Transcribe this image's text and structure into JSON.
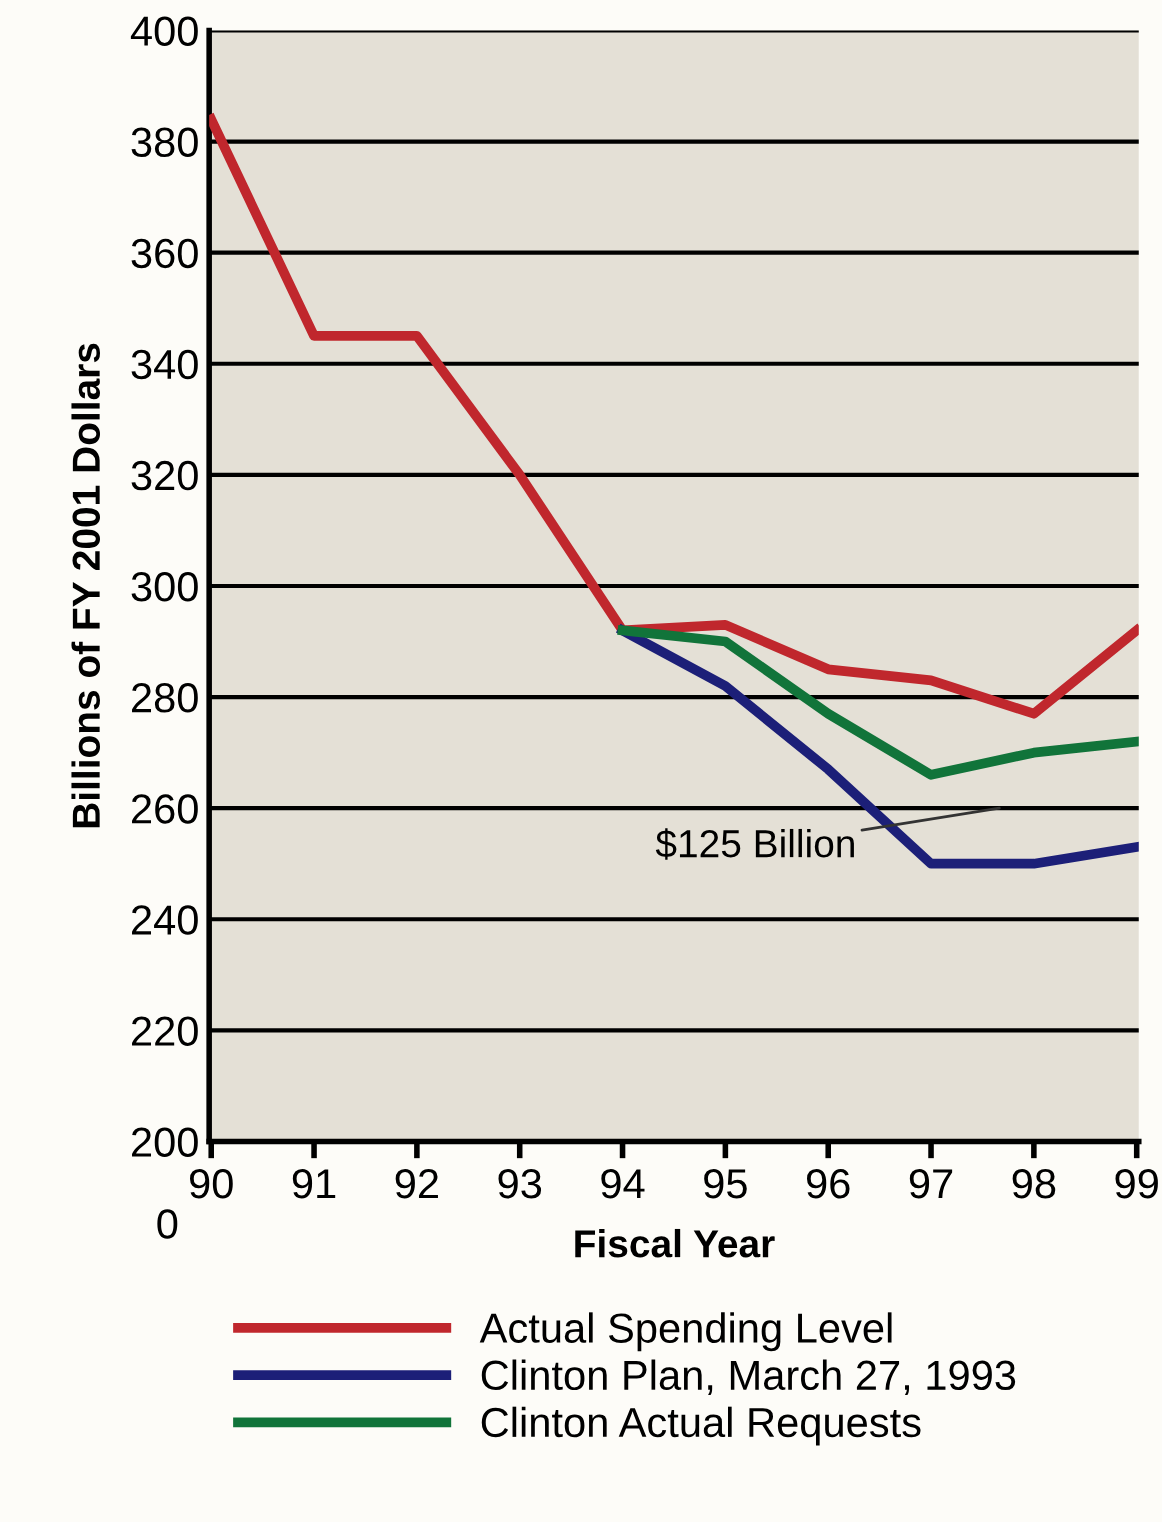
{
  "chart_data": {
    "type": "line",
    "xlabel": "Fiscal Year",
    "ylabel": "Billions of FY 2001 Dollars",
    "categories": [
      "90",
      "91",
      "92",
      "93",
      "94",
      "95",
      "96",
      "97",
      "98",
      "99"
    ],
    "series": [
      {
        "name": "Actual Spending Level",
        "color": "#c0272d",
        "values": [
          384,
          345,
          345,
          320,
          292,
          293,
          285,
          283,
          277,
          292
        ]
      },
      {
        "name": "Clinton Plan, March 27, 1993",
        "color": "#1c1f78",
        "values": [
          null,
          null,
          null,
          null,
          292,
          282,
          267,
          250,
          250,
          253
        ]
      },
      {
        "name": "Clinton Actual Requests",
        "color": "#11743a",
        "values": [
          null,
          null,
          null,
          null,
          292,
          290,
          277,
          266,
          270,
          272
        ]
      }
    ],
    "ylim": [
      200,
      400
    ],
    "yticks": [
      200,
      220,
      240,
      260,
      280,
      300,
      320,
      340,
      360,
      380,
      400
    ],
    "grid": "y",
    "legend": "bottom",
    "marker": "none",
    "line_style": "solid",
    "annotations": [
      "$125 Billion",
      "0"
    ]
  }
}
